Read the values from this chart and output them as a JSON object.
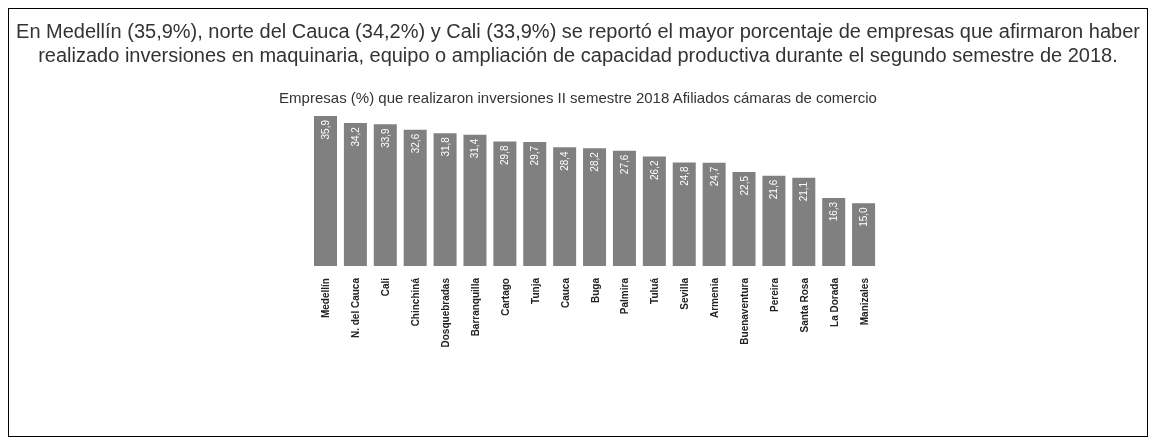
{
  "chart_data": {
    "type": "bar",
    "title": "En Medellín (35,9%), norte del Cauca (34,2%) y Cali (33,9%) se reportó el mayor porcentaje de empresas que afirmaron haber realizado inversiones en maquinaria, equipo o ampliación de capacidad productiva durante el segundo semestre de 2018.",
    "subtitle": "Empresas (%) que realizaron inversiones II semestre 2018 Afiliados cámaras de comercio",
    "categories": [
      "Medellín",
      "N. del Cauca",
      "Cali",
      "Chinchiná",
      "Dosquebradas",
      "Barranquilla",
      "Cartago",
      "Tunja",
      "Cauca",
      "Buga",
      "Palmira",
      "Tuluá",
      "Sevilla",
      "Armenia",
      "Buenaventura",
      "Pereira",
      "Santa Rosa",
      "La Dorada",
      "Manizales"
    ],
    "values": [
      35.9,
      34.2,
      33.9,
      32.6,
      31.8,
      31.4,
      29.8,
      29.7,
      28.4,
      28.2,
      27.6,
      26.2,
      24.8,
      24.7,
      22.5,
      21.6,
      21.1,
      16.3,
      15.0
    ],
    "value_labels": [
      "35,9",
      "34,2",
      "33,9",
      "32,6",
      "31,8",
      "31,4",
      "29,8",
      "29,7",
      "28,4",
      "28,2",
      "27,6",
      "26,2",
      "24,8",
      "24,7",
      "22,5",
      "21,6",
      "21,1",
      "16,3",
      "15,0"
    ],
    "color": "#808080"
  }
}
